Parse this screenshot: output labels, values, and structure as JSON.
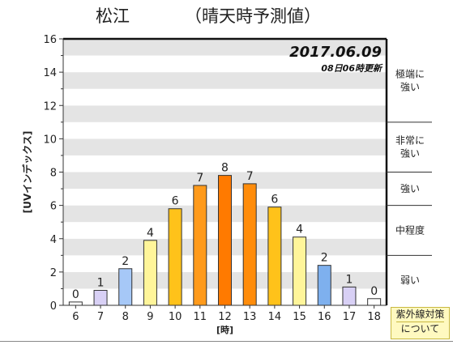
{
  "title": {
    "place": "松江",
    "note": "（晴天時予測値）"
  },
  "date": "2017.06.09",
  "updated": "08日06時更新",
  "info_button": {
    "line1": "紫外線対策",
    "line2": "について"
  },
  "chart_data": {
    "type": "bar",
    "ylabel": "[UVインデックス]",
    "xlabel": "[時]",
    "ylim": [
      0,
      16
    ],
    "yticks": [
      0,
      2,
      4,
      6,
      8,
      10,
      12,
      14,
      16
    ],
    "categories": [
      "6",
      "7",
      "8",
      "9",
      "10",
      "11",
      "12",
      "13",
      "14",
      "15",
      "16",
      "17",
      "18"
    ],
    "values": [
      0.2,
      0.9,
      2.2,
      3.9,
      5.8,
      7.2,
      7.8,
      7.3,
      5.9,
      4.1,
      2.4,
      1.1,
      0.4
    ],
    "value_labels": [
      "0",
      "1",
      "2",
      "4",
      "6",
      "7",
      "8",
      "7",
      "6",
      "4",
      "2",
      "1",
      "0"
    ],
    "bar_colors": [
      "#ffffff",
      "#d8d0f5",
      "#a6c8f7",
      "#fff59a",
      "#ffc21a",
      "#ff9a1a",
      "#ff7a00",
      "#ff8c0a",
      "#ffc21a",
      "#fff59a",
      "#7eb0ee",
      "#d8d0f5",
      "#ffffff"
    ],
    "grid": "horizontal bands",
    "legend": [
      {
        "label": [
          "極端に",
          "強い"
        ],
        "range": [
          11,
          16
        ]
      },
      {
        "label": [
          "非常に",
          "強い"
        ],
        "range": [
          8,
          11
        ]
      },
      {
        "label": [
          "強い"
        ],
        "range": [
          6,
          8
        ]
      },
      {
        "label": [
          "中程度"
        ],
        "range": [
          3,
          6
        ]
      },
      {
        "label": [
          "弱い"
        ],
        "range": [
          0,
          3
        ]
      }
    ]
  }
}
